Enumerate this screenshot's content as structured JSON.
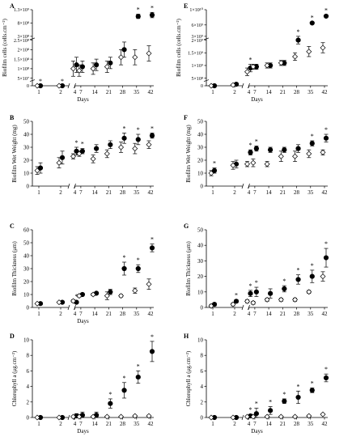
{
  "figure": {
    "colors": {
      "treatment": "#000000",
      "control": "#ffffff",
      "axis": "#000000"
    },
    "markers": {
      "treatment": "filled-circle",
      "control": "open-diamond"
    }
  },
  "chart_data": [
    {
      "panel": "A",
      "type": "scatter",
      "xlabel": "Days",
      "ylabel": "Biofilm cells (cells.cm⁻²)",
      "x": [
        1,
        2,
        4,
        7,
        14,
        21,
        28,
        35,
        42
      ],
      "xticks": [
        "1",
        "2",
        "4",
        "7",
        "14",
        "21",
        "28",
        "35",
        "42"
      ],
      "y_axis": {
        "break": true,
        "lower_ticks": [
          "0"
        ],
        "upper_ticks": [
          "5×10⁷",
          "1×10⁸",
          "1.5×10⁸",
          "2×10⁸",
          "2.5×10⁸",
          "3×10⁸",
          "8×10⁸",
          "1.3×10⁹"
        ],
        "segments": [
          {
            "range": [
              50000000,
              250000000
            ],
            "ticks": [
              50000000,
              100000000,
              150000000,
              200000000,
              250000000
            ]
          },
          {
            "range": [
              300000000,
              1300000000
            ],
            "ticks": [
              300000000,
              800000000,
              1300000000
            ]
          }
        ]
      },
      "series": [
        {
          "role": "treatment",
          "values": [
            0,
            0,
            120000000,
            110000000,
            120000000,
            130000000,
            200000000,
            1050000000,
            1100000000
          ],
          "errors": [
            0,
            0,
            40000000,
            30000000,
            30000000,
            30000000,
            40000000,
            80000000,
            100000000
          ],
          "significant": [
            true,
            true,
            false,
            false,
            false,
            false,
            false,
            true,
            true
          ]
        },
        {
          "role": "control",
          "values": [
            0,
            0,
            100000000,
            90000000,
            100000000,
            110000000,
            160000000,
            160000000,
            180000000
          ],
          "errors": [
            0,
            0,
            40000000,
            30000000,
            30000000,
            30000000,
            40000000,
            40000000,
            40000000
          ]
        }
      ]
    },
    {
      "panel": "E",
      "type": "scatter",
      "xlabel": "Days",
      "ylabel": "Biofilm cells (cells.cm⁻²)",
      "x": [
        1,
        2,
        4,
        7,
        14,
        21,
        28,
        35,
        42
      ],
      "xticks": [
        "1",
        "2",
        "4",
        "7",
        "14",
        "21",
        "28",
        "35",
        "42"
      ],
      "y_axis": {
        "break": true,
        "lower_ticks": [
          "0"
        ],
        "upper_ticks": [
          "5×10⁸",
          "1×10⁹",
          "1.5×10⁹",
          "2×10⁹",
          "3×10⁹",
          "6×10⁹",
          "1×10¹⁰"
        ],
        "segments": [
          {
            "range": [
              500000000,
              2000000000
            ],
            "ticks": [
              500000000,
              1000000000,
              1500000000,
              2000000000
            ]
          },
          {
            "range": [
              3000000000,
              10000000000
            ],
            "ticks": [
              3000000000,
              6000000000,
              10000000000
            ]
          }
        ]
      },
      "series": [
        {
          "role": "treatment",
          "values": [
            0,
            100000000,
            900000000,
            950000000,
            1000000000,
            1100000000,
            2000000000,
            6500000000,
            8300000000
          ],
          "errors": [
            0,
            100000000,
            150000000,
            100000000,
            100000000,
            100000000,
            150000000,
            200000000,
            300000000
          ],
          "significant": [
            false,
            false,
            true,
            false,
            false,
            false,
            true,
            true,
            true
          ]
        },
        {
          "role": "control",
          "values": [
            0,
            50000000,
            750000000,
            950000000,
            1000000000,
            1100000000,
            1350000000,
            1550000000,
            1700000000
          ],
          "errors": [
            0,
            50000000,
            150000000,
            100000000,
            100000000,
            100000000,
            150000000,
            200000000,
            200000000
          ]
        }
      ]
    },
    {
      "panel": "B",
      "type": "scatter",
      "xlabel": "",
      "ylabel": "Biofilm Wet Weight (mg)",
      "x": [
        1,
        2,
        4,
        7,
        14,
        21,
        28,
        35,
        42
      ],
      "xticks": [
        "1",
        "2",
        "4",
        "7",
        "14",
        "21",
        "28",
        "35",
        "42"
      ],
      "ylim": [
        0,
        50
      ],
      "yticks": [
        0,
        10,
        20,
        30,
        40,
        50
      ],
      "series": [
        {
          "role": "treatment",
          "values": [
            14,
            22,
            27,
            27,
            29,
            32,
            37,
            36,
            39
          ],
          "errors": [
            4,
            5,
            3,
            2,
            3,
            3,
            4,
            4,
            2
          ],
          "significant": [
            false,
            false,
            true,
            true,
            false,
            false,
            true,
            true,
            true
          ]
        },
        {
          "role": "control",
          "values": [
            12,
            18,
            23,
            25,
            21,
            25,
            30,
            29,
            32
          ],
          "errors": [
            3,
            4,
            2,
            2,
            3,
            3,
            4,
            4,
            3
          ]
        }
      ]
    },
    {
      "panel": "F",
      "type": "scatter",
      "xlabel": "",
      "ylabel": "Biofilm Wet Weight (mg)",
      "x": [
        1,
        2,
        4,
        7,
        14,
        21,
        28,
        35,
        42
      ],
      "xticks": [
        "1",
        "2",
        "4",
        "7",
        "14",
        "21",
        "28",
        "35",
        "42"
      ],
      "ylim": [
        0,
        50
      ],
      "yticks": [
        0,
        10,
        20,
        30,
        40,
        50
      ],
      "series": [
        {
          "role": "treatment",
          "values": [
            12,
            17,
            26,
            29,
            28,
            28,
            29,
            33,
            37
          ],
          "errors": [
            2,
            3,
            2,
            2,
            2,
            2,
            3,
            2,
            3
          ],
          "significant": [
            true,
            false,
            true,
            true,
            false,
            false,
            false,
            true,
            true
          ]
        },
        {
          "role": "control",
          "values": [
            10,
            16,
            17,
            18,
            17,
            23,
            23,
            25,
            26
          ],
          "errors": [
            2,
            3,
            2,
            3,
            2,
            4,
            4,
            3,
            2
          ]
        }
      ]
    },
    {
      "panel": "C",
      "type": "scatter",
      "xlabel": "Days",
      "ylabel": "Biofilm Thickness (μm)",
      "x": [
        1,
        2,
        4,
        7,
        14,
        21,
        28,
        35,
        42
      ],
      "xticks": [
        "1",
        "2",
        "4",
        "7",
        "14",
        "21",
        "28",
        "35",
        "42"
      ],
      "ylim": [
        0,
        60
      ],
      "yticks": [
        0,
        10,
        20,
        30,
        40,
        50,
        60
      ],
      "series": [
        {
          "role": "treatment",
          "values": [
            3,
            4,
            4,
            10,
            11,
            12,
            30,
            30,
            46
          ],
          "errors": [
            0.5,
            0.5,
            1,
            1,
            1,
            2,
            5,
            3,
            3
          ],
          "significant": [
            false,
            false,
            true,
            false,
            false,
            false,
            true,
            true,
            true
          ]
        },
        {
          "role": "control",
          "values": [
            3,
            4,
            5,
            9,
            10,
            9,
            9,
            13,
            18
          ],
          "errors": [
            0.5,
            0.5,
            1,
            1,
            1,
            3,
            1,
            2,
            4
          ]
        }
      ]
    },
    {
      "panel": "G",
      "type": "scatter",
      "xlabel": "",
      "ylabel": "Biofilm Thickness (μm)",
      "x": [
        1,
        2,
        4,
        7,
        14,
        21,
        28,
        35,
        42
      ],
      "xticks": [
        "1",
        "2",
        "4",
        "7",
        "14",
        "21",
        "28",
        "35",
        "42"
      ],
      "ylim": [
        0,
        50
      ],
      "yticks": [
        0,
        10,
        20,
        30,
        40,
        50
      ],
      "series": [
        {
          "role": "treatment",
          "values": [
            2,
            4,
            9,
            10,
            9,
            12,
            18,
            20,
            32
          ],
          "errors": [
            1,
            1,
            2,
            3,
            3,
            2,
            3,
            4,
            6
          ],
          "significant": [
            false,
            true,
            true,
            true,
            false,
            true,
            true,
            true,
            true
          ]
        },
        {
          "role": "control",
          "values": [
            1,
            2,
            4,
            3,
            5,
            5,
            5,
            10,
            20
          ],
          "errors": [
            1,
            1,
            1,
            1,
            1,
            1,
            1,
            1,
            3
          ]
        }
      ]
    },
    {
      "panel": "D",
      "type": "scatter",
      "xlabel": "Days",
      "ylabel": "Chlorophyll a (μg.cm⁻²)",
      "x": [
        1,
        2,
        4,
        7,
        14,
        21,
        28,
        35,
        42
      ],
      "xticks": [
        "1",
        "2",
        "4",
        "7",
        "14",
        "21",
        "28",
        "35",
        "42"
      ],
      "ylim": [
        0,
        10
      ],
      "yticks": [
        0,
        2,
        4,
        6,
        8,
        10
      ],
      "series": [
        {
          "role": "treatment",
          "values": [
            0,
            0,
            0.2,
            0.3,
            0.3,
            1.8,
            3.5,
            5.2,
            8.5
          ],
          "errors": [
            0,
            0,
            0.3,
            0.4,
            0.4,
            0.6,
            1,
            0.8,
            1.3
          ],
          "significant": [
            false,
            false,
            false,
            false,
            false,
            true,
            true,
            true,
            true
          ]
        },
        {
          "role": "control",
          "values": [
            0,
            0,
            0.1,
            0.1,
            0.1,
            0.1,
            0.1,
            0.2,
            0.2
          ],
          "errors": [
            0,
            0,
            0.1,
            0.1,
            0.1,
            0.1,
            0.1,
            0.1,
            0.1
          ]
        }
      ]
    },
    {
      "panel": "H",
      "type": "scatter",
      "xlabel": "Days",
      "ylabel": "Chlorophyll a (μg.cm⁻²)",
      "x": [
        1,
        2,
        4,
        7,
        14,
        21,
        28,
        35,
        42
      ],
      "xticks": [
        "1",
        "2",
        "4",
        "7",
        "14",
        "21",
        "28",
        "35",
        "42"
      ],
      "ylim": [
        0,
        10
      ],
      "yticks": [
        0,
        2,
        4,
        6,
        8,
        10
      ],
      "series": [
        {
          "role": "treatment",
          "values": [
            0,
            0,
            0.2,
            0.5,
            0.9,
            2.1,
            2.6,
            3.5,
            5.1
          ],
          "errors": [
            0,
            0,
            0.2,
            0.7,
            0.5,
            0.3,
            0.8,
            0.3,
            0.5
          ],
          "significant": [
            false,
            false,
            true,
            true,
            true,
            true,
            true,
            true,
            true
          ]
        },
        {
          "role": "control",
          "values": [
            0,
            0,
            0.1,
            0.1,
            0.1,
            0.1,
            0.1,
            0.2,
            0.4
          ],
          "errors": [
            0,
            0,
            0.1,
            0.1,
            0.1,
            0.1,
            0.1,
            0.1,
            0.1
          ]
        }
      ]
    }
  ]
}
